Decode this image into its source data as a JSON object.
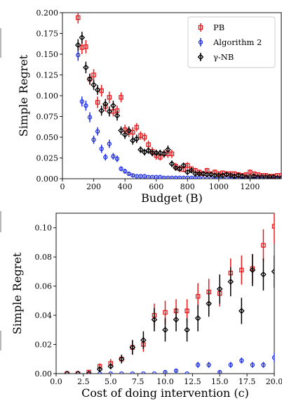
{
  "chart_data": [
    {
      "type": "scatter",
      "xlabel": "Budget (B)",
      "ylabel": "Simple Regret",
      "xlim": [
        0,
        1400
      ],
      "ylim": [
        0,
        0.2
      ],
      "xticks": [
        0,
        200,
        400,
        600,
        800,
        1000,
        1200
      ],
      "xtick_labels": [
        "0",
        "200",
        "400",
        "600",
        "800",
        "1000",
        "1200"
      ],
      "yticks": [
        0,
        0.025,
        0.05,
        0.075,
        0.1,
        0.125,
        0.15,
        0.175,
        0.2
      ],
      "ytick_labels": [
        "0.000",
        "0.025",
        "0.050",
        "0.075",
        "0.100",
        "0.125",
        "0.150",
        "0.175",
        "0.200"
      ],
      "grid": false,
      "legend": "top-right",
      "series": [
        {
          "name": "PB",
          "color": "#e8191c",
          "marker": "square",
          "x": [
            100,
            125,
            150,
            175,
            200,
            225,
            250,
            275,
            300,
            325,
            350,
            375,
            400,
            425,
            450,
            475,
            500,
            525,
            550,
            575,
            600,
            625,
            650,
            675,
            700,
            725,
            750,
            775,
            800,
            825,
            850,
            875,
            900,
            925,
            950,
            975,
            1000,
            1025,
            1050,
            1075,
            1100,
            1125,
            1150,
            1175,
            1200,
            1225,
            1250,
            1275,
            1300,
            1325,
            1350,
            1375,
            1400
          ],
          "y": [
            0.194,
            0.158,
            0.159,
            0.12,
            0.125,
            0.092,
            0.106,
            0.087,
            0.098,
            0.081,
            0.082,
            0.098,
            0.059,
            0.056,
            0.056,
            0.062,
            0.052,
            0.05,
            0.041,
            0.033,
            0.028,
            0.026,
            0.03,
            0.03,
            0.03,
            0.015,
            0.012,
            0.011,
            0.016,
            0.012,
            0.01,
            0.008,
            0.006,
            0.01,
            0.006,
            0.008,
            0.006,
            0.007,
            0.006,
            0.006,
            0.006,
            0.005,
            0.004,
            0.005,
            0.008,
            0.006,
            0.005,
            0.004,
            0.004,
            0.003,
            0.003,
            0.004,
            0.004
          ],
          "err": [
            0.007,
            0.008,
            0.008,
            0.007,
            0.007,
            0.007,
            0.007,
            0.006,
            0.007,
            0.006,
            0.006,
            0.006,
            0.006,
            0.006,
            0.006,
            0.005,
            0.005,
            0.005,
            0.005,
            0.005,
            0.005,
            0.004,
            0.005,
            0.005,
            0.005,
            0.004,
            0.004,
            0.003,
            0.004,
            0.003,
            0.003,
            0.003,
            0.003,
            0.003,
            0.003,
            0.003,
            0.003,
            0.003,
            0.003,
            0.003,
            0.003,
            0.002,
            0.002,
            0.002,
            0.003,
            0.002,
            0.002,
            0.002,
            0.002,
            0.002,
            0.002,
            0.002,
            0.002
          ]
        },
        {
          "name": "Algorithm 2",
          "color": "#1f2ee8",
          "marker": "circle",
          "x": [
            100,
            125,
            150,
            175,
            200,
            225,
            250,
            275,
            300,
            325,
            350,
            375,
            400,
            425,
            450,
            475,
            500,
            525,
            550,
            575,
            600,
            625,
            650,
            675,
            700,
            725,
            750,
            775,
            800,
            825,
            850,
            875,
            900,
            925,
            950,
            975,
            1000,
            1025,
            1050,
            1075,
            1100,
            1125,
            1150,
            1175,
            1200,
            1225,
            1250,
            1275,
            1300,
            1325,
            1350,
            1375,
            1400
          ],
          "y": [
            0.149,
            0.093,
            0.088,
            0.074,
            0.047,
            0.057,
            0.036,
            0.026,
            0.042,
            0.027,
            0.024,
            0.012,
            0.009,
            0.006,
            0.004,
            0.003,
            0.003,
            0.003,
            0.002,
            0.002,
            0.002,
            0.002,
            0.001,
            0.001,
            0.001,
            0.001,
            0.001,
            0.001,
            0.001,
            0.001,
            0.001,
            0.001,
            0.0,
            0.0,
            0.0,
            0.0,
            0.0,
            0.0,
            0.0,
            0.0,
            0.0,
            0.0,
            0.0,
            0.0,
            0.0,
            0.0,
            0.0,
            0.0,
            0.0,
            0.0,
            0.0,
            0.0,
            0.0
          ],
          "err": [
            0.007,
            0.006,
            0.006,
            0.006,
            0.005,
            0.005,
            0.005,
            0.004,
            0.005,
            0.004,
            0.004,
            0.003,
            0.003,
            0.002,
            0.002,
            0.001,
            0.001,
            0.001,
            0.001,
            0.001,
            0.001,
            0.001,
            0.001,
            0.001,
            0.001,
            0.001,
            0.001,
            0.001,
            0.001,
            0.001,
            0.001,
            0.001,
            0.0,
            0.0,
            0.0,
            0.0,
            0.0,
            0.0,
            0.0,
            0.0,
            0.0,
            0.0,
            0.0,
            0.0,
            0.0,
            0.0,
            0.0,
            0.0,
            0.0,
            0.0,
            0.0,
            0.0,
            0.0
          ]
        },
        {
          "name": "γ-NB",
          "color": "#000000",
          "marker": "diamond",
          "x": [
            100,
            125,
            150,
            175,
            200,
            225,
            250,
            275,
            300,
            325,
            350,
            375,
            400,
            425,
            450,
            475,
            500,
            525,
            550,
            575,
            600,
            625,
            650,
            675,
            700,
            725,
            750,
            775,
            800,
            825,
            850,
            875,
            900,
            925,
            950,
            975,
            1000,
            1025,
            1050,
            1075,
            1100,
            1125,
            1150,
            1175,
            1200,
            1225,
            1250,
            1275,
            1300,
            1325,
            1350,
            1375,
            1400
          ],
          "y": [
            0.161,
            0.17,
            0.134,
            0.12,
            0.113,
            0.107,
            0.082,
            0.09,
            0.081,
            0.088,
            0.076,
            0.058,
            0.053,
            0.058,
            0.046,
            0.048,
            0.035,
            0.032,
            0.034,
            0.031,
            0.031,
            0.031,
            0.03,
            0.035,
            0.018,
            0.013,
            0.012,
            0.016,
            0.008,
            0.01,
            0.006,
            0.006,
            0.006,
            0.005,
            0.005,
            0.004,
            0.004,
            0.004,
            0.005,
            0.004,
            0.003,
            0.004,
            0.003,
            0.002,
            0.002,
            0.003,
            0.002,
            0.002,
            0.002,
            0.002,
            0.002,
            0.001,
            0.001
          ],
          "err": [
            0.007,
            0.007,
            0.007,
            0.006,
            0.006,
            0.006,
            0.006,
            0.006,
            0.006,
            0.006,
            0.006,
            0.005,
            0.005,
            0.005,
            0.005,
            0.005,
            0.004,
            0.004,
            0.004,
            0.004,
            0.004,
            0.004,
            0.004,
            0.005,
            0.004,
            0.003,
            0.003,
            0.003,
            0.003,
            0.003,
            0.002,
            0.002,
            0.002,
            0.002,
            0.002,
            0.002,
            0.002,
            0.002,
            0.002,
            0.002,
            0.002,
            0.002,
            0.002,
            0.001,
            0.001,
            0.002,
            0.001,
            0.001,
            0.001,
            0.001,
            0.001,
            0.001,
            0.001
          ]
        }
      ]
    },
    {
      "type": "scatter",
      "xlabel": "Cost of doing intervention (c)",
      "ylabel": "Simple Regret",
      "xlim": [
        0,
        20
      ],
      "ylim": [
        0,
        0.11
      ],
      "xticks": [
        0,
        2.5,
        5,
        7.5,
        10,
        12.5,
        15,
        17.5,
        20
      ],
      "xtick_labels": [
        "0.0",
        "2.5",
        "5.0",
        "7.5",
        "10.0",
        "12.5",
        "15.0",
        "17.5",
        "20.0"
      ],
      "yticks": [
        0,
        0.02,
        0.04,
        0.06,
        0.08,
        0.1
      ],
      "ytick_labels": [
        "0.00",
        "0.02",
        "0.04",
        "0.06",
        "0.08",
        "0.10"
      ],
      "grid": false,
      "legend": "none",
      "series": [
        {
          "name": "PB",
          "color": "#e8191c",
          "marker": "square",
          "x": [
            1,
            2,
            3,
            4,
            5,
            6,
            7,
            8,
            9,
            10,
            11,
            12,
            13,
            14,
            15,
            16,
            17,
            18,
            19,
            20
          ],
          "y": [
            0.0,
            0.0,
            0.001,
            0.005,
            0.007,
            0.01,
            0.018,
            0.02,
            0.04,
            0.042,
            0.043,
            0.043,
            0.053,
            0.056,
            0.055,
            0.069,
            0.071,
            0.072,
            0.088,
            0.101
          ],
          "err": [
            0.0,
            0.0,
            0.001,
            0.002,
            0.003,
            0.003,
            0.005,
            0.005,
            0.008,
            0.008,
            0.008,
            0.008,
            0.009,
            0.009,
            0.009,
            0.01,
            0.01,
            0.01,
            0.011,
            0.012
          ]
        },
        {
          "name": "Algorithm 2",
          "color": "#1f2ee8",
          "marker": "circle",
          "x": [
            1,
            2,
            3,
            4,
            5,
            6,
            7,
            8,
            9,
            10,
            11,
            12,
            13,
            14,
            15,
            16,
            17,
            18,
            19,
            20
          ],
          "y": [
            0.0,
            0.0,
            0.0,
            0.0,
            0.0,
            0.0,
            0.0,
            0.0,
            0.0,
            0.001,
            0.002,
            0.0,
            0.006,
            0.006,
            0.001,
            0.006,
            0.009,
            0.006,
            0.006,
            0.011
          ],
          "err": [
            0.0,
            0.0,
            0.0,
            0.0,
            0.0,
            0.0,
            0.0,
            0.0,
            0.0,
            0.001,
            0.001,
            0.0,
            0.002,
            0.002,
            0.001,
            0.002,
            0.002,
            0.002,
            0.002,
            0.003
          ]
        },
        {
          "name": "γ-NB",
          "color": "#000000",
          "marker": "diamond",
          "x": [
            1,
            2,
            3,
            4,
            5,
            6,
            7,
            8,
            9,
            10,
            11,
            12,
            13,
            14,
            15,
            16,
            17,
            18,
            19,
            20
          ],
          "y": [
            0.0,
            0.0,
            0.0,
            0.003,
            0.005,
            0.01,
            0.018,
            0.023,
            0.037,
            0.03,
            0.037,
            0.03,
            0.038,
            0.048,
            0.058,
            0.063,
            0.043,
            0.071,
            0.068,
            0.07
          ],
          "err": [
            0.0,
            0.0,
            0.0,
            0.002,
            0.002,
            0.003,
            0.005,
            0.006,
            0.008,
            0.008,
            0.008,
            0.008,
            0.009,
            0.009,
            0.01,
            0.01,
            0.009,
            0.011,
            0.011,
            0.011
          ]
        }
      ]
    }
  ]
}
